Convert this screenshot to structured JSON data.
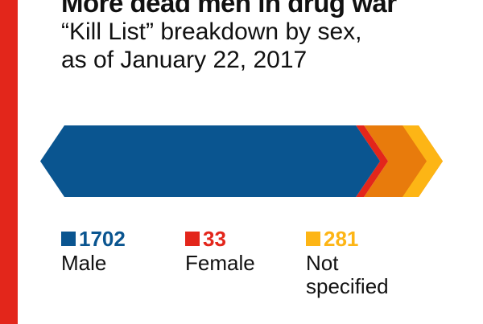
{
  "header": {
    "title": "More dead men in drug war",
    "subtitle_line1": "“Kill List” breakdown by sex,",
    "subtitle_line2": "as of January 22, 2017"
  },
  "chart_data": {
    "type": "bar",
    "orientation": "horizontal-stacked",
    "title": "More dead men in drug war",
    "subtitle": "“Kill List” breakdown by sex, as of January 22, 2017",
    "series": [
      {
        "name": "Male",
        "value": 1702,
        "value_label": "1702",
        "color": "#0a5590"
      },
      {
        "name": "Female",
        "value": 33,
        "value_label": "33",
        "color": "#e3261b"
      },
      {
        "name": "Not specified",
        "value": 281,
        "value_label": "281",
        "color": "#e87b0c"
      }
    ],
    "accent_color": "#fdb515",
    "legend_placement": "bottom"
  },
  "legend": [
    {
      "value": "1702",
      "label": "Male",
      "color": "#0a5590"
    },
    {
      "value": "33",
      "label": "Female",
      "color": "#e3261b"
    },
    {
      "value": "281",
      "label_line1": "Not",
      "label_line2": "specified",
      "color": "#fdb515"
    }
  ]
}
